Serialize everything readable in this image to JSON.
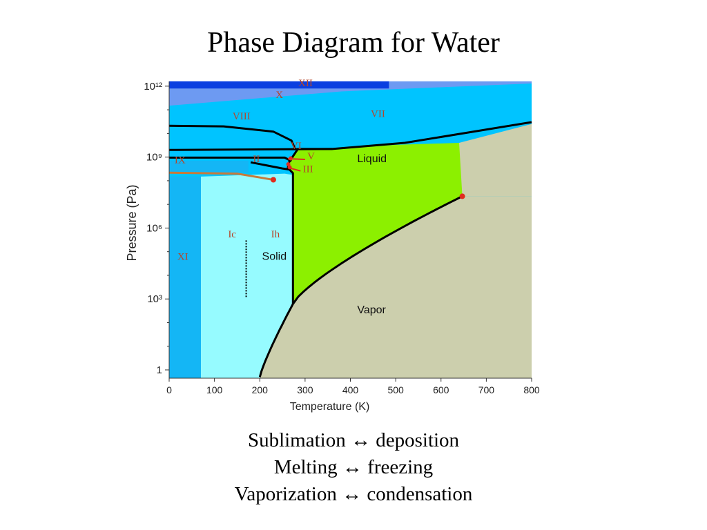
{
  "slide": {
    "title": "Phase Diagram for Water",
    "captions": [
      "Sublimation ↔ deposition",
      "Melting ↔ freezing",
      "Vaporization ↔ condensation"
    ]
  },
  "chart_data": {
    "type": "area",
    "title": "Phase Diagram for Water",
    "xlabel": "Temperature (K)",
    "ylabel": "Pressure (Pa)",
    "xlim": [
      0,
      800
    ],
    "ylog": true,
    "x_ticks": [
      {
        "value": 0,
        "label": "0"
      },
      {
        "value": 100,
        "label": "100"
      },
      {
        "value": 200,
        "label": "200"
      },
      {
        "value": 300,
        "label": "300"
      },
      {
        "value": 400,
        "label": "400"
      },
      {
        "value": 500,
        "label": "500"
      },
      {
        "value": 600,
        "label": "600"
      },
      {
        "value": 700,
        "label": "700"
      },
      {
        "value": 800,
        "label": "800"
      }
    ],
    "y_ticks": [
      {
        "value": 1,
        "label": "1"
      },
      {
        "value": 1000,
        "label": "10³"
      },
      {
        "value": 1000000,
        "label": "10⁶"
      },
      {
        "value": 1000000000,
        "label": "10⁹"
      },
      {
        "value": 1000000000000,
        "label": "10¹²"
      }
    ],
    "phase_labels": [
      {
        "text": "XII",
        "T": 285,
        "P": 1000000000000.0,
        "style": "roman"
      },
      {
        "text": "X",
        "T": 235,
        "P": 320000000000.0,
        "style": "roman"
      },
      {
        "text": "VIII",
        "T": 140,
        "P": 40000000000.0,
        "style": "roman"
      },
      {
        "text": "VII",
        "T": 445,
        "P": 50000000000.0,
        "style": "roman"
      },
      {
        "text": "VI",
        "T": 268,
        "P": 2200000000.0,
        "style": "roman"
      },
      {
        "text": "V",
        "T": 305,
        "P": 800000000.0,
        "style": "roman"
      },
      {
        "text": "II",
        "T": 185,
        "P": 600000000.0,
        "style": "roman"
      },
      {
        "text": "III",
        "T": 295,
        "P": 230000000.0,
        "style": "roman"
      },
      {
        "text": "IX",
        "T": 12,
        "P": 550000000.0,
        "style": "roman"
      },
      {
        "text": "Ic",
        "T": 130,
        "P": 400000.0,
        "style": "roman"
      },
      {
        "text": "Ih",
        "T": 225,
        "P": 400000.0,
        "style": "roman"
      },
      {
        "text": "XI",
        "T": 18,
        "P": 45000.0,
        "style": "roman"
      },
      {
        "text": "Liquid",
        "T": 415,
        "P": 600000000.0,
        "style": "big"
      },
      {
        "text": "Solid",
        "T": 205,
        "P": 45000.0,
        "style": "big"
      },
      {
        "text": "Vapor",
        "T": 415,
        "P": 250.0,
        "style": "big"
      }
    ],
    "points": [
      {
        "name": "critical-point",
        "T": 647,
        "P": 22000000.0
      },
      {
        "name": "ice-ix-endpoint",
        "T": 230,
        "P": 110000000.0
      }
    ],
    "colors": {
      "ice_high": "#00c4ff",
      "ice_ih": "#96fbff",
      "ice_xi": "#14b6f5",
      "ice_x": "#6d9af2",
      "ice_xii": "#0a3fe0",
      "liquid": "#8cf000",
      "vapor": "#cccfad",
      "boundary": "#000000",
      "ix_boundary": "#c87a3a",
      "point": "#e02c1e",
      "label_roman": "#b5452a"
    }
  }
}
